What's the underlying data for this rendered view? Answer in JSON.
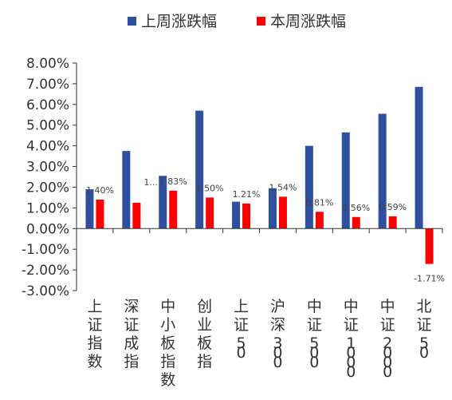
{
  "chart_data": {
    "type": "bar",
    "categories": [
      "上证指数",
      "深证成指",
      "中小板指数",
      "创业板指",
      "上证50",
      "沪深300",
      "中证500",
      "中证1000",
      "中证2000",
      "北证50"
    ],
    "series": [
      {
        "name": "上周涨跌幅",
        "color": "#2F4F9F",
        "values": [
          1.9,
          3.75,
          2.55,
          5.7,
          1.3,
          1.95,
          4.0,
          4.65,
          5.55,
          6.85
        ],
        "data_labels": [
          "",
          "",
          "",
          "",
          "",
          "",
          "",
          "",
          "",
          ""
        ]
      },
      {
        "name": "本周涨跌幅",
        "color": "#FF0000",
        "values": [
          1.4,
          1.25,
          1.83,
          1.5,
          1.21,
          1.54,
          0.81,
          0.56,
          0.59,
          -1.71
        ],
        "data_labels": [
          "1.40%",
          "1...",
          "1.83%",
          "1.50%",
          "1.21%",
          "1.54%",
          "0.81%",
          "0.56%",
          "0.59%",
          "-1.71%"
        ]
      }
    ],
    "ylim": [
      -3.0,
      8.0
    ],
    "yticks": [
      "8.00%",
      "7.00%",
      "6.00%",
      "5.00%",
      "4.00%",
      "3.00%",
      "2.00%",
      "1.00%",
      "0.00%",
      "-1.00%",
      "-2.00%",
      "-3.00%"
    ],
    "legend_position": "top",
    "grid": false
  }
}
